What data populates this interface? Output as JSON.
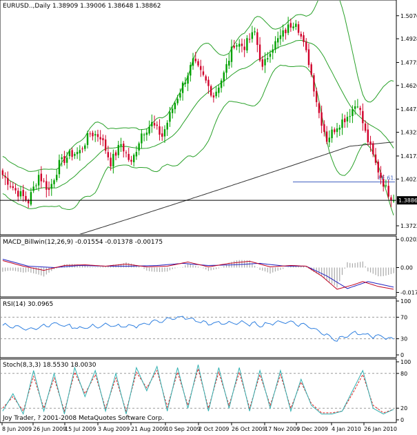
{
  "header": {
    "symbol": "EURUSD..,Daily",
    "open": "1.38909",
    "high": "1.39006",
    "low": "1.38648",
    "close": "1.38862"
  },
  "current_price_label": "1.38862",
  "fe_label": "FE 61.8",
  "copyright": "Joy Trader, ? 2001-2008 MetaQuotes Software Corp.",
  "colors": {
    "bull": "#00a000",
    "bear": "#d0002a",
    "bands": "#27a027",
    "ma": "#333333",
    "fe_line": "#4060c0",
    "macd_main": "#c00020",
    "macd_signal": "#2020c0",
    "macd_hist": "#a8a8a8",
    "rsi": "#3080e0",
    "stoch_main": "#30b0b0",
    "stoch_signal": "#e02020"
  },
  "chart_data": [
    {
      "type": "candlestick",
      "title": "EURUSD..,Daily  1.38909 1.39006 1.38648 1.38862",
      "yticks": [
        "1.50765",
        "1.49280",
        "1.47750",
        "1.46265",
        "1.44735",
        "1.43250",
        "1.41720",
        "1.40235",
        "1.38862",
        "1.37220"
      ],
      "ylim": [
        1.3682,
        1.516
      ],
      "xticks": [
        "8 Jun 2009",
        "26 Jun 2009",
        "15 Jul 2009",
        "3 Aug 2009",
        "21 Aug 2009",
        "10 Sep 2009",
        "2 Oct 2009",
        "26 Oct 2009",
        "17 Nov 2009",
        "9 Dec 2009",
        "4 Jan 2010",
        "26 Jan 2010"
      ],
      "close_anchors": [
        {
          "i": 0,
          "v": 1.405
        },
        {
          "i": 5,
          "v": 1.395
        },
        {
          "i": 10,
          "v": 1.388
        },
        {
          "i": 14,
          "v": 1.405
        },
        {
          "i": 18,
          "v": 1.395
        },
        {
          "i": 22,
          "v": 1.412
        },
        {
          "i": 26,
          "v": 1.418
        },
        {
          "i": 30,
          "v": 1.42
        },
        {
          "i": 34,
          "v": 1.432
        },
        {
          "i": 38,
          "v": 1.43
        },
        {
          "i": 42,
          "v": 1.413
        },
        {
          "i": 46,
          "v": 1.425
        },
        {
          "i": 50,
          "v": 1.412
        },
        {
          "i": 54,
          "v": 1.432
        },
        {
          "i": 58,
          "v": 1.438
        },
        {
          "i": 62,
          "v": 1.43
        },
        {
          "i": 66,
          "v": 1.448
        },
        {
          "i": 70,
          "v": 1.463
        },
        {
          "i": 74,
          "v": 1.478
        },
        {
          "i": 78,
          "v": 1.468
        },
        {
          "i": 82,
          "v": 1.456
        },
        {
          "i": 86,
          "v": 1.47
        },
        {
          "i": 90,
          "v": 1.49
        },
        {
          "i": 94,
          "v": 1.488
        },
        {
          "i": 98,
          "v": 1.497
        },
        {
          "i": 101,
          "v": 1.473
        },
        {
          "i": 104,
          "v": 1.486
        },
        {
          "i": 108,
          "v": 1.494
        },
        {
          "i": 112,
          "v": 1.502
        },
        {
          "i": 114,
          "v": 1.505
        },
        {
          "i": 116,
          "v": 1.494
        },
        {
          "i": 119,
          "v": 1.478
        },
        {
          "i": 123,
          "v": 1.445
        },
        {
          "i": 126,
          "v": 1.428
        },
        {
          "i": 130,
          "v": 1.437
        },
        {
          "i": 134,
          "v": 1.443
        },
        {
          "i": 138,
          "v": 1.452
        },
        {
          "i": 141,
          "v": 1.432
        },
        {
          "i": 145,
          "v": 1.412
        },
        {
          "i": 149,
          "v": 1.396
        },
        {
          "i": 152,
          "v": 1.3886
        }
      ],
      "count": 153,
      "fe_level": 1.4005,
      "current": 1.38862
    },
    {
      "type": "line",
      "title": "MACD_Billwin(12,26,9) -0.01554 -0.01378 -0.00175",
      "yticks": [
        "0.02021",
        "0.00",
        "-0.01777"
      ],
      "ylim": [
        -0.02,
        0.021
      ],
      "series": [
        {
          "name": "MACD",
          "anchors": [
            [
              0,
              0.005
            ],
            [
              8,
              0.001
            ],
            [
              16,
              -0.002
            ],
            [
              24,
              0.0015
            ],
            [
              32,
              0.002
            ],
            [
              40,
              0.001
            ],
            [
              48,
              0.0025
            ],
            [
              56,
              0.0005
            ],
            [
              64,
              0.001
            ],
            [
              72,
              0.004
            ],
            [
              80,
              0.0005
            ],
            [
              88,
              0.003
            ],
            [
              96,
              0.0045
            ],
            [
              104,
              0.0005
            ],
            [
              112,
              0.0015
            ],
            [
              118,
              0.001
            ],
            [
              124,
              -0.006
            ],
            [
              130,
              -0.0155
            ],
            [
              136,
              -0.0125
            ],
            [
              140,
              -0.01
            ],
            [
              146,
              -0.0135
            ],
            [
              152,
              -0.0155
            ]
          ]
        },
        {
          "name": "Signal",
          "anchors": [
            [
              0,
              0.006
            ],
            [
              10,
              0.001
            ],
            [
              20,
              0.0
            ],
            [
              30,
              0.0015
            ],
            [
              40,
              0.001
            ],
            [
              50,
              0.001
            ],
            [
              60,
              0.0015
            ],
            [
              70,
              0.003
            ],
            [
              80,
              0.0015
            ],
            [
              90,
              0.002
            ],
            [
              100,
              0.003
            ],
            [
              110,
              0.001
            ],
            [
              118,
              0.001
            ],
            [
              126,
              -0.006
            ],
            [
              134,
              -0.015
            ],
            [
              142,
              -0.01
            ],
            [
              152,
              -0.014
            ]
          ]
        }
      ]
    },
    {
      "type": "line",
      "title": "RSI(14) 30.0965",
      "yticks": [
        "100",
        "70",
        "30",
        "0"
      ],
      "ylim": [
        0,
        100
      ],
      "guides": [
        70,
        30
      ],
      "series": [
        {
          "name": "RSI",
          "anchors": [
            [
              0,
              56
            ],
            [
              10,
              48
            ],
            [
              20,
              58
            ],
            [
              30,
              50
            ],
            [
              40,
              55
            ],
            [
              50,
              52
            ],
            [
              60,
              63
            ],
            [
              70,
              70
            ],
            [
              80,
              58
            ],
            [
              90,
              60
            ],
            [
              100,
              56
            ],
            [
              110,
              62
            ],
            [
              118,
              55
            ],
            [
              124,
              42
            ],
            [
              130,
              28
            ],
            [
              136,
              40
            ],
            [
              140,
              38
            ],
            [
              146,
              34
            ],
            [
              152,
              30
            ]
          ]
        }
      ]
    },
    {
      "type": "line",
      "title": "Stoch(8,3,3) 18.5530 18.0030",
      "yticks": [
        "100",
        "80",
        "20",
        "0"
      ],
      "ylim": [
        0,
        100
      ],
      "guides": [
        80,
        20
      ],
      "series": [
        {
          "name": "Main",
          "anchors": [
            [
              0,
              15
            ],
            [
              4,
              45
            ],
            [
              8,
              10
            ],
            [
              12,
              85
            ],
            [
              16,
              15
            ],
            [
              20,
              80
            ],
            [
              24,
              10
            ],
            [
              28,
              90
            ],
            [
              32,
              40
            ],
            [
              36,
              85
            ],
            [
              40,
              15
            ],
            [
              44,
              80
            ],
            [
              48,
              10
            ],
            [
              52,
              90
            ],
            [
              56,
              50
            ],
            [
              60,
              92
            ],
            [
              64,
              15
            ],
            [
              68,
              90
            ],
            [
              72,
              20
            ],
            [
              76,
              95
            ],
            [
              80,
              15
            ],
            [
              84,
              90
            ],
            [
              88,
              20
            ],
            [
              92,
              90
            ],
            [
              96,
              15
            ],
            [
              100,
              85
            ],
            [
              104,
              20
            ],
            [
              108,
              85
            ],
            [
              112,
              15
            ],
            [
              116,
              70
            ],
            [
              120,
              25
            ],
            [
              124,
              10
            ],
            [
              128,
              10
            ],
            [
              132,
              15
            ],
            [
              136,
              50
            ],
            [
              140,
              85
            ],
            [
              144,
              20
            ],
            [
              148,
              10
            ],
            [
              152,
              18
            ]
          ]
        },
        {
          "name": "Signal",
          "anchors": [
            [
              0,
              20
            ],
            [
              4,
              40
            ],
            [
              8,
              15
            ],
            [
              12,
              75
            ],
            [
              16,
              20
            ],
            [
              20,
              72
            ],
            [
              24,
              15
            ],
            [
              28,
              82
            ],
            [
              32,
              45
            ],
            [
              36,
              78
            ],
            [
              40,
              20
            ],
            [
              44,
              72
            ],
            [
              48,
              15
            ],
            [
              52,
              82
            ],
            [
              56,
              55
            ],
            [
              60,
              85
            ],
            [
              64,
              22
            ],
            [
              68,
              82
            ],
            [
              72,
              25
            ],
            [
              76,
              88
            ],
            [
              80,
              20
            ],
            [
              84,
              82
            ],
            [
              88,
              25
            ],
            [
              92,
              82
            ],
            [
              96,
              20
            ],
            [
              100,
              78
            ],
            [
              104,
              25
            ],
            [
              108,
              78
            ],
            [
              112,
              20
            ],
            [
              116,
              65
            ],
            [
              120,
              28
            ],
            [
              124,
              12
            ],
            [
              128,
              12
            ],
            [
              132,
              15
            ],
            [
              136,
              45
            ],
            [
              140,
              78
            ],
            [
              144,
              25
            ],
            [
              148,
              12
            ],
            [
              152,
              18
            ]
          ]
        }
      ]
    }
  ]
}
